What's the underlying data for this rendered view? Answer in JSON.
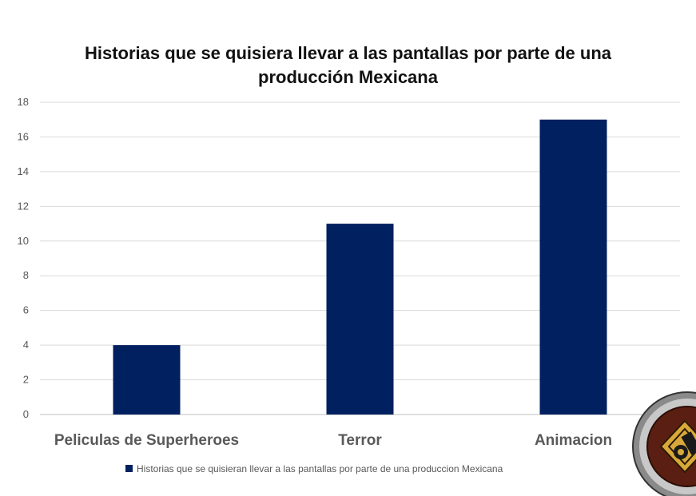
{
  "chart_data": {
    "type": "bar",
    "title": "Historias que se quisiera llevar a las pantallas por parte de una producción Mexicana",
    "title_lines": [
      "Historias que se quisiera llevar a las pantallas por parte de una",
      "producción Mexicana"
    ],
    "categories": [
      "Peliculas de Superheroes",
      "Terror",
      "Animacion"
    ],
    "series": [
      {
        "name": "Historias que se quisieran llevar a las pantallas por parte de una produccion Mexicana",
        "values": [
          4,
          11,
          17
        ],
        "color": "#002060"
      }
    ],
    "ylim": [
      0,
      18
    ],
    "yticks": [
      0,
      2,
      4,
      6,
      8,
      10,
      12,
      14,
      16,
      18
    ],
    "xlabel": "",
    "ylabel": "",
    "grid": true,
    "legend": "bottom"
  },
  "colors": {
    "bar": "#002060",
    "grid": "#d9d9d9",
    "axis_text": "#595959"
  },
  "logo": {
    "icon": "film-reel-logo-icon"
  }
}
